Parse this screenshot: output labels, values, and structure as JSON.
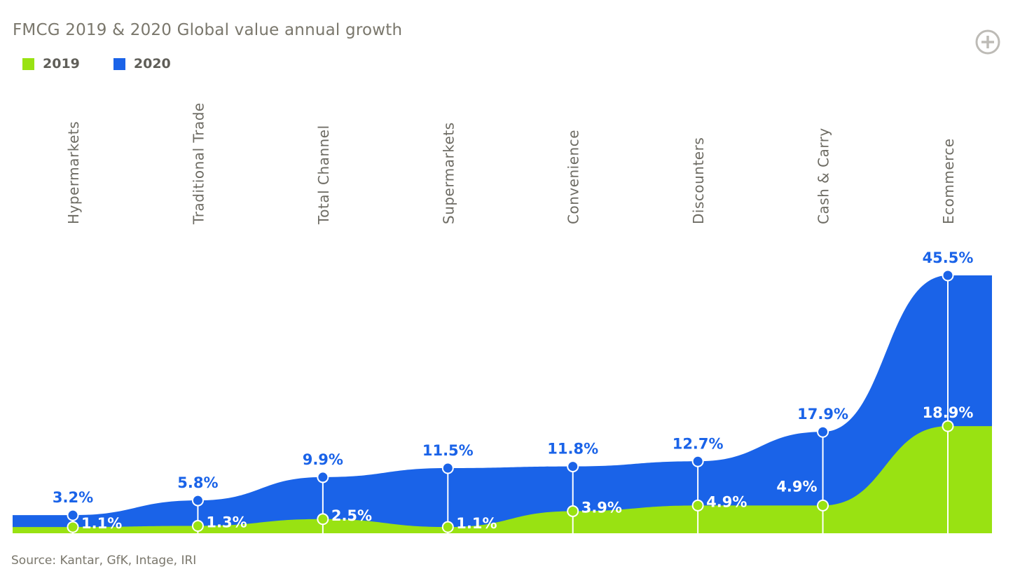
{
  "title": "FMCG 2019 & 2020 Global value annual growth",
  "legend": [
    {
      "label": "2019",
      "color": "#99e212"
    },
    {
      "label": "2020",
      "color": "#1a63e8"
    }
  ],
  "source": "Source: Kantar, GfK, Intage, IRI",
  "icons": {
    "add": "plus-circle-icon"
  },
  "chart_data": {
    "type": "area",
    "title": "FMCG 2019 & 2020 Global value annual growth",
    "categories": [
      "Hypermarkets",
      "Traditional Trade",
      "Total Channel",
      "Supermarkets",
      "Convenience",
      "Discounters",
      "Cash & Carry",
      "Ecommerce"
    ],
    "series": [
      {
        "name": "2019",
        "values": [
          1.1,
          1.3,
          2.5,
          1.1,
          3.9,
          4.9,
          4.9,
          18.9
        ],
        "labels": [
          "1.1%",
          "1.3%",
          "2.5%",
          "1.1%",
          "3.9%",
          "4.9%",
          "4.9%",
          "18.9%"
        ],
        "color": "#99e212"
      },
      {
        "name": "2020",
        "values": [
          3.2,
          5.8,
          9.9,
          11.5,
          11.8,
          12.7,
          17.9,
          45.5
        ],
        "labels": [
          "3.2%",
          "5.8%",
          "9.9%",
          "11.5%",
          "11.8%",
          "12.7%",
          "17.9%",
          "45.5%"
        ],
        "color": "#1a63e8"
      }
    ],
    "ylim": [
      0,
      45.5
    ],
    "xlabel": "",
    "ylabel": "",
    "grid": false,
    "legend": "top-left"
  }
}
